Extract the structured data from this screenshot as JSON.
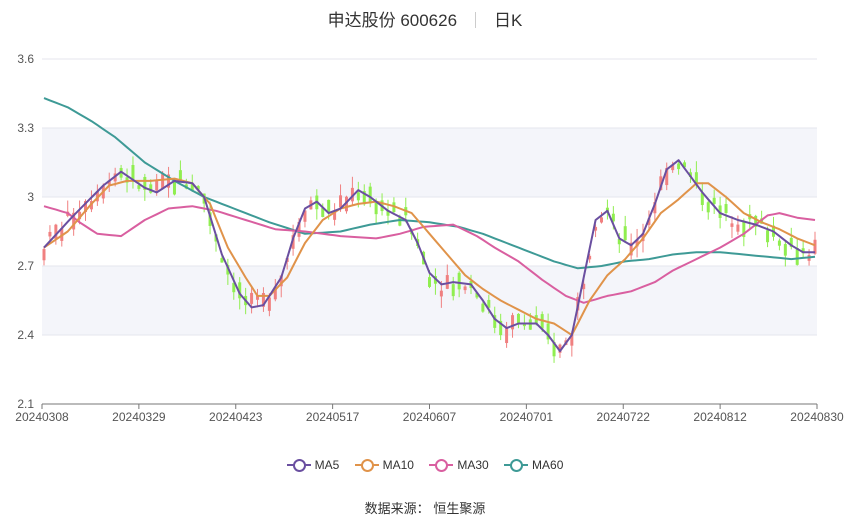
{
  "header": {
    "stock_name": "申达股份 600626",
    "period": "日K"
  },
  "source": {
    "label": "数据来源：",
    "name": "恒生聚源"
  },
  "colors": {
    "up": "#f08080",
    "down": "#90ee50",
    "ma5": "#6a4fa0",
    "ma10": "#e0934a",
    "ma30": "#d95fa0",
    "ma60": "#3e9a96",
    "band": "#f4f5fa",
    "grid": "#e5e6ee"
  },
  "chart_data": {
    "type": "candlestick",
    "ylim": [
      2.1,
      3.6
    ],
    "y_ticks": [
      2.1,
      2.4,
      2.7,
      3,
      3.3,
      3.6
    ],
    "x_tick_labels": [
      "20240308",
      "20240329",
      "20240423",
      "20240517",
      "20240607",
      "20240701",
      "20240722",
      "20240812",
      "20240830"
    ],
    "legend": [
      "MA5",
      "MA10",
      "MA30",
      "MA60"
    ],
    "approx_trading_days": 120,
    "ma5_anchors": [
      [
        0,
        2.78
      ],
      [
        5,
        2.92
      ],
      [
        10,
        3.05
      ],
      [
        13,
        3.11
      ],
      [
        17,
        3.04
      ],
      [
        19,
        3.02
      ],
      [
        22,
        3.07
      ],
      [
        25,
        3.06
      ],
      [
        27,
        3.0
      ],
      [
        30,
        2.75
      ],
      [
        33,
        2.58
      ],
      [
        35,
        2.52
      ],
      [
        37,
        2.53
      ],
      [
        40,
        2.65
      ],
      [
        42,
        2.82
      ],
      [
        44,
        2.95
      ],
      [
        46,
        2.98
      ],
      [
        48,
        2.93
      ],
      [
        50,
        2.95
      ],
      [
        53,
        3.03
      ],
      [
        55,
        3.0
      ],
      [
        58,
        2.94
      ],
      [
        61,
        2.9
      ],
      [
        63,
        2.8
      ],
      [
        65,
        2.67
      ],
      [
        67,
        2.62
      ],
      [
        69,
        2.63
      ],
      [
        72,
        2.62
      ],
      [
        74,
        2.55
      ],
      [
        76,
        2.47
      ],
      [
        78,
        2.43
      ],
      [
        80,
        2.45
      ],
      [
        83,
        2.45
      ],
      [
        85,
        2.4
      ],
      [
        87,
        2.33
      ],
      [
        89,
        2.4
      ],
      [
        91,
        2.65
      ],
      [
        93,
        2.9
      ],
      [
        95,
        2.94
      ],
      [
        97,
        2.82
      ],
      [
        99,
        2.79
      ],
      [
        101,
        2.84
      ],
      [
        103,
        2.97
      ],
      [
        105,
        3.12
      ],
      [
        107,
        3.16
      ],
      [
        109,
        3.09
      ],
      [
        111,
        3.02
      ],
      [
        114,
        2.93
      ],
      [
        117,
        2.9
      ],
      [
        120,
        2.88
      ],
      [
        123,
        2.85
      ],
      [
        126,
        2.79
      ],
      [
        128,
        2.76
      ],
      [
        130,
        2.76
      ]
    ],
    "ma10_anchors": [
      [
        0,
        2.78
      ],
      [
        4,
        2.85
      ],
      [
        8,
        2.97
      ],
      [
        11,
        3.05
      ],
      [
        14,
        3.07
      ],
      [
        18,
        3.07
      ],
      [
        22,
        3.08
      ],
      [
        25,
        3.06
      ],
      [
        28,
        2.97
      ],
      [
        31,
        2.78
      ],
      [
        34,
        2.65
      ],
      [
        36,
        2.57
      ],
      [
        38,
        2.57
      ],
      [
        41,
        2.65
      ],
      [
        44,
        2.8
      ],
      [
        47,
        2.9
      ],
      [
        50,
        2.95
      ],
      [
        53,
        2.97
      ],
      [
        56,
        2.98
      ],
      [
        59,
        2.96
      ],
      [
        62,
        2.93
      ],
      [
        65,
        2.84
      ],
      [
        68,
        2.75
      ],
      [
        71,
        2.66
      ],
      [
        74,
        2.6
      ],
      [
        77,
        2.55
      ],
      [
        80,
        2.51
      ],
      [
        83,
        2.47
      ],
      [
        86,
        2.45
      ],
      [
        89,
        2.4
      ],
      [
        92,
        2.55
      ],
      [
        95,
        2.66
      ],
      [
        98,
        2.73
      ],
      [
        101,
        2.82
      ],
      [
        104,
        2.93
      ],
      [
        107,
        2.99
      ],
      [
        110,
        3.06
      ],
      [
        112,
        3.06
      ],
      [
        115,
        3.0
      ],
      [
        118,
        2.93
      ],
      [
        121,
        2.89
      ],
      [
        124,
        2.86
      ],
      [
        127,
        2.82
      ],
      [
        130,
        2.79
      ]
    ],
    "ma30_anchors": [
      [
        0,
        2.96
      ],
      [
        4,
        2.93
      ],
      [
        6,
        2.89
      ],
      [
        9,
        2.84
      ],
      [
        13,
        2.83
      ],
      [
        17,
        2.9
      ],
      [
        21,
        2.95
      ],
      [
        25,
        2.96
      ],
      [
        29,
        2.94
      ],
      [
        34,
        2.9
      ],
      [
        39,
        2.86
      ],
      [
        44,
        2.85
      ],
      [
        50,
        2.83
      ],
      [
        56,
        2.82
      ],
      [
        60,
        2.84
      ],
      [
        64,
        2.87
      ],
      [
        69,
        2.88
      ],
      [
        73,
        2.83
      ],
      [
        76,
        2.78
      ],
      [
        80,
        2.72
      ],
      [
        84,
        2.64
      ],
      [
        88,
        2.57
      ],
      [
        91,
        2.54
      ],
      [
        95,
        2.57
      ],
      [
        99,
        2.59
      ],
      [
        103,
        2.63
      ],
      [
        106,
        2.68
      ],
      [
        110,
        2.73
      ],
      [
        114,
        2.78
      ],
      [
        118,
        2.84
      ],
      [
        122,
        2.92
      ],
      [
        124,
        2.93
      ],
      [
        127,
        2.91
      ],
      [
        130,
        2.9
      ]
    ],
    "ma60_anchors": [
      [
        0,
        3.43
      ],
      [
        4,
        3.39
      ],
      [
        8,
        3.33
      ],
      [
        12,
        3.26
      ],
      [
        17,
        3.15
      ],
      [
        22,
        3.07
      ],
      [
        27,
        3.0
      ],
      [
        32,
        2.95
      ],
      [
        38,
        2.89
      ],
      [
        44,
        2.84
      ],
      [
        50,
        2.85
      ],
      [
        55,
        2.88
      ],
      [
        60,
        2.9
      ],
      [
        65,
        2.89
      ],
      [
        70,
        2.87
      ],
      [
        74,
        2.84
      ],
      [
        78,
        2.8
      ],
      [
        82,
        2.76
      ],
      [
        86,
        2.72
      ],
      [
        90,
        2.69
      ],
      [
        94,
        2.7
      ],
      [
        98,
        2.72
      ],
      [
        102,
        2.73
      ],
      [
        106,
        2.75
      ],
      [
        110,
        2.76
      ],
      [
        114,
        2.76
      ],
      [
        118,
        2.75
      ],
      [
        122,
        2.74
      ],
      [
        126,
        2.73
      ],
      [
        130,
        2.74
      ]
    ]
  }
}
